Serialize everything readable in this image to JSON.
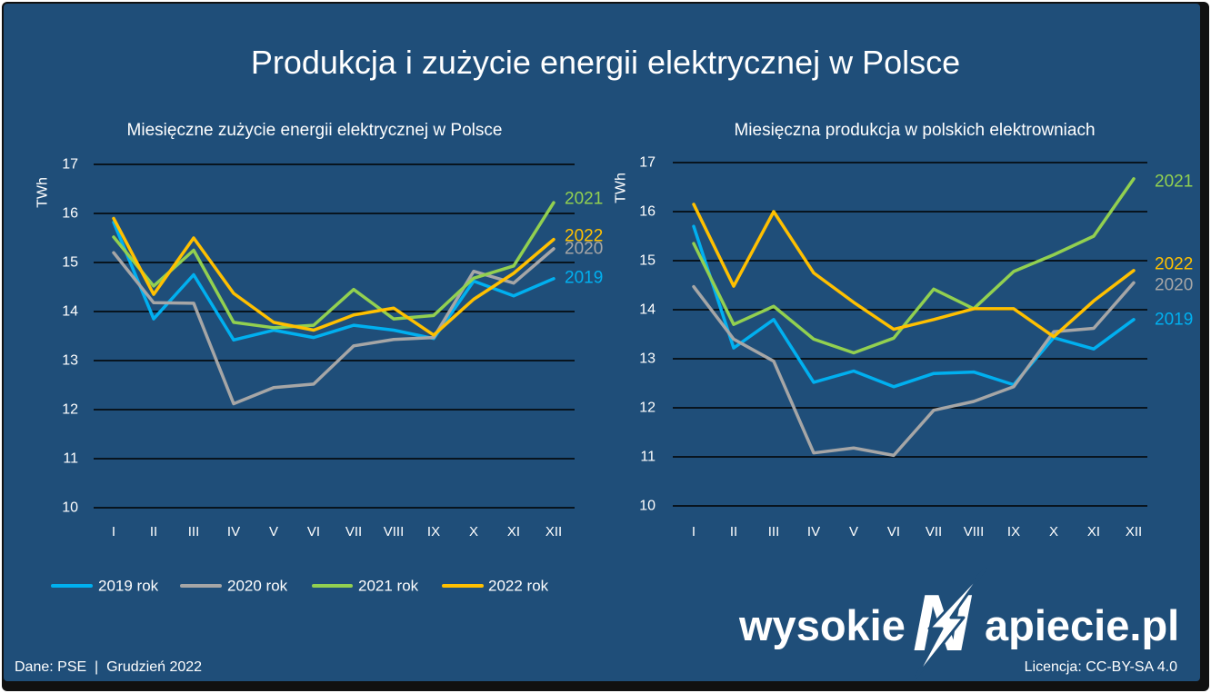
{
  "title": "Produkcja i zużycie energii elektrycznej w Polsce",
  "colors": {
    "background": "#1f4e79",
    "grid": "#000000",
    "text": "#ffffff"
  },
  "chart_data": [
    {
      "type": "line",
      "title": "Miesięczne zużycie energii elektrycznej w Polsce",
      "ylabel": "TWh",
      "categories": [
        "I",
        "II",
        "III",
        "IV",
        "V",
        "VI",
        "VII",
        "VIII",
        "IX",
        "X",
        "XI",
        "XII"
      ],
      "ylim": [
        10,
        17
      ],
      "yticks": [
        10,
        11,
        12,
        13,
        14,
        15,
        16,
        17
      ],
      "grid": true,
      "series": [
        {
          "name": "2019 rok",
          "label": "2019",
          "color": "#00b0f0",
          "values": [
            15.82,
            13.85,
            14.75,
            13.42,
            13.62,
            13.47,
            13.72,
            13.62,
            13.45,
            14.62,
            14.32,
            14.67
          ]
        },
        {
          "name": "2020 rok",
          "label": "2020",
          "color": "#a6a6a6",
          "values": [
            15.2,
            14.18,
            14.17,
            12.12,
            12.45,
            12.52,
            13.3,
            13.43,
            13.47,
            14.82,
            14.58,
            15.28
          ]
        },
        {
          "name": "2021 rok",
          "label": "2021",
          "color": "#92d050",
          "values": [
            15.52,
            14.52,
            15.25,
            13.78,
            13.67,
            13.72,
            14.45,
            13.85,
            13.92,
            14.68,
            14.93,
            16.22
          ]
        },
        {
          "name": "2022 rok",
          "label": "2022",
          "color": "#ffc000",
          "values": [
            15.9,
            14.35,
            15.5,
            14.37,
            13.78,
            13.62,
            13.93,
            14.07,
            13.52,
            14.25,
            14.78,
            15.47
          ]
        }
      ]
    },
    {
      "type": "line",
      "title": "Miesięczna produkcja w polskich elektrowniach",
      "ylabel": "TWh",
      "categories": [
        "I",
        "II",
        "III",
        "IV",
        "V",
        "VI",
        "VII",
        "VIII",
        "IX",
        "X",
        "XI",
        "XII"
      ],
      "ylim": [
        10,
        17
      ],
      "yticks": [
        10,
        11,
        12,
        13,
        14,
        15,
        16,
        17
      ],
      "grid": true,
      "series": [
        {
          "name": "2019 rok",
          "label": "2019",
          "color": "#00b0f0",
          "values": [
            15.7,
            13.22,
            13.8,
            12.52,
            12.75,
            12.43,
            12.7,
            12.73,
            12.47,
            13.43,
            13.2,
            13.8
          ]
        },
        {
          "name": "2020 rok",
          "label": "2020",
          "color": "#a6a6a6",
          "values": [
            14.47,
            13.4,
            12.95,
            11.08,
            11.18,
            11.03,
            11.95,
            12.13,
            12.43,
            13.55,
            13.62,
            14.55
          ]
        },
        {
          "name": "2021 rok",
          "label": "2021",
          "color": "#92d050",
          "values": [
            15.35,
            13.7,
            14.07,
            13.4,
            13.12,
            13.42,
            14.42,
            14.02,
            14.78,
            15.12,
            15.5,
            16.67
          ]
        },
        {
          "name": "2022 rok",
          "label": "2022",
          "color": "#ffc000",
          "values": [
            16.15,
            14.48,
            16.0,
            14.75,
            14.15,
            13.6,
            13.8,
            14.02,
            14.02,
            13.45,
            14.18,
            14.8
          ]
        }
      ]
    }
  ],
  "legend": {
    "placement": "bottom-left",
    "items": [
      {
        "label": "2019 rok",
        "color": "#00b0f0"
      },
      {
        "label": "2020 rok",
        "color": "#a6a6a6"
      },
      {
        "label": "2021 rok",
        "color": "#92d050"
      },
      {
        "label": "2022 rok",
        "color": "#ffc000"
      }
    ]
  },
  "logo": {
    "left": "wysokie",
    "mark": "N",
    "right": "apiecie.pl"
  },
  "footer": {
    "source": "Dane: PSE  |  Grudzień 2022",
    "license": "Licencja: CC-BY-SA 4.0"
  }
}
